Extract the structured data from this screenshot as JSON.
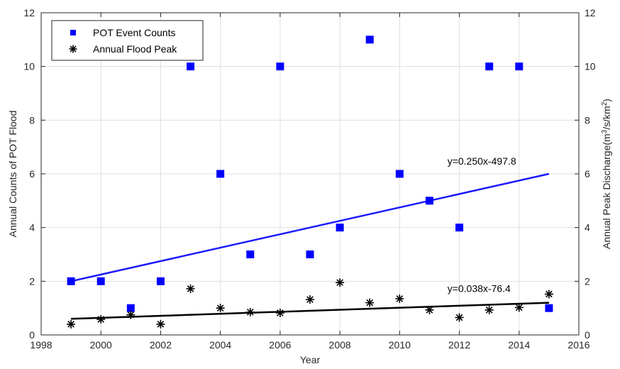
{
  "chart_data": {
    "type": "scatter",
    "title": "",
    "xlabel": "Year",
    "ylabel_left": "Annual Counts of POT Flood",
    "ylabel_right": "Annual  Peak Discharge(m",
    "ylabel_right_parts": [
      "Annual  Peak Discharge(m",
      "3",
      "/s/km",
      "2",
      ")"
    ],
    "xlim": [
      1998,
      2016
    ],
    "ylim_left": [
      0,
      12
    ],
    "ylim_right": [
      0,
      12
    ],
    "xticks": [
      "1998",
      "2000",
      "2002",
      "2004",
      "2006",
      "2008",
      "2010",
      "2012",
      "2014",
      "2016"
    ],
    "yticks_left": [
      "0",
      "2",
      "4",
      "6",
      "8",
      "10",
      "12"
    ],
    "yticks_right": [
      "0",
      "2",
      "4",
      "6",
      "8",
      "10",
      "12"
    ],
    "grid": true,
    "legend_position": "top-left",
    "series": [
      {
        "name": "POT Event Counts",
        "marker": "square",
        "color": "#0000ff",
        "axis": "left",
        "x": [
          1999,
          2000,
          2001,
          2002,
          2003,
          2004,
          2005,
          2006,
          2007,
          2008,
          2009,
          2010,
          2011,
          2012,
          2013,
          2014,
          2015
        ],
        "y": [
          2,
          2,
          1,
          2,
          10,
          6,
          3,
          10,
          3,
          4,
          11,
          6,
          5,
          4,
          10,
          10,
          1
        ]
      },
      {
        "name": "Annual Flood Peak",
        "marker": "asterisk",
        "color": "#000000",
        "axis": "right",
        "x": [
          1999,
          2000,
          2001,
          2002,
          2003,
          2004,
          2005,
          2006,
          2007,
          2008,
          2009,
          2010,
          2011,
          2012,
          2013,
          2014,
          2015
        ],
        "y": [
          0.4,
          0.58,
          0.75,
          0.4,
          1.72,
          1.0,
          0.85,
          0.82,
          1.32,
          1.95,
          1.2,
          1.35,
          0.93,
          0.65,
          0.93,
          1.02,
          1.52
        ]
      }
    ],
    "trendlines": [
      {
        "color": "#1a1aff",
        "x": [
          1999,
          2015
        ],
        "y": [
          2.0,
          6.0
        ],
        "label": "y=0.250x-497.8"
      },
      {
        "color": "#000000",
        "x": [
          1999,
          2015
        ],
        "y": [
          0.6,
          1.2
        ],
        "label": "y=0.038x-76.4"
      }
    ]
  }
}
